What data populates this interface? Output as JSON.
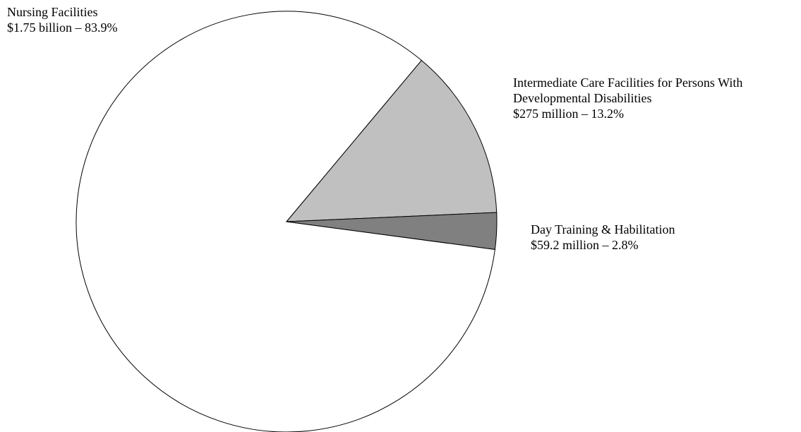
{
  "chart_data": {
    "type": "pie",
    "categories": [
      "Nursing Facilities",
      "Intermediate Care Facilities for Persons With Developmental Disabilities",
      "Day Training & Habilitation"
    ],
    "values": [
      83.9,
      13.2,
      2.8
    ],
    "value_labels": [
      "$1.75 billion – 83.9%",
      "$275 million – 13.2%",
      "$59.2 million – 2.8%"
    ],
    "colors": [
      "#ffffff",
      "#c0c0c0",
      "#808080"
    ]
  }
}
